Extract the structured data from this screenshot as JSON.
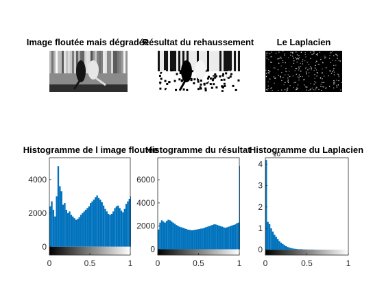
{
  "figure": {
    "panels": [
      {
        "id": "img1",
        "kind": "image",
        "title": "Image floutée mais dégradée",
        "style": "blurred"
      },
      {
        "id": "img2",
        "kind": "image",
        "title": "Résultat du rehaussement",
        "style": "enhanced"
      },
      {
        "id": "img3",
        "kind": "image",
        "title": "Le Laplacien",
        "style": "laplacian"
      }
    ]
  },
  "chart_data": [
    {
      "type": "bar",
      "title": "Histogramme de l image floutée",
      "xlim": [
        0,
        1
      ],
      "ylim": [
        -500,
        5300
      ],
      "xticks": [
        0,
        0.5,
        1
      ],
      "xtick_labels": [
        "0",
        "0.5",
        "1"
      ],
      "yticks": [
        0,
        2000,
        4000
      ],
      "ytick_labels": [
        "0",
        "2000",
        "4000"
      ],
      "colorbar": "grayscale",
      "color": "#0072BD",
      "x": [
        0.0,
        0.02,
        0.04,
        0.06,
        0.08,
        0.1,
        0.12,
        0.14,
        0.16,
        0.18,
        0.2,
        0.22,
        0.24,
        0.26,
        0.28,
        0.3,
        0.32,
        0.34,
        0.36,
        0.38,
        0.4,
        0.42,
        0.44,
        0.46,
        0.48,
        0.5,
        0.52,
        0.54,
        0.56,
        0.58,
        0.6,
        0.62,
        0.64,
        0.66,
        0.68,
        0.7,
        0.72,
        0.74,
        0.76,
        0.78,
        0.8,
        0.82,
        0.84,
        0.86,
        0.88,
        0.9,
        0.92,
        0.94,
        0.96,
        0.98,
        1.0
      ],
      "y": [
        2400,
        2700,
        2200,
        1800,
        3000,
        4800,
        3600,
        3300,
        2500,
        2600,
        2200,
        2000,
        2100,
        1900,
        1800,
        1700,
        1600,
        1650,
        1750,
        1900,
        2000,
        2100,
        2200,
        2300,
        2400,
        2600,
        2700,
        2800,
        2950,
        3050,
        2900,
        2800,
        2650,
        2450,
        2250,
        2100,
        1950,
        1900,
        1950,
        2100,
        2300,
        2400,
        2450,
        2300,
        2150,
        2050,
        2250,
        2550,
        2700,
        2850,
        3000
      ]
    },
    {
      "type": "bar",
      "title": "Histogramme du résultat",
      "xlim": [
        0,
        1
      ],
      "ylim": [
        -500,
        7900
      ],
      "xticks": [
        0,
        0.5,
        1
      ],
      "xtick_labels": [
        "0",
        "0.5",
        "1"
      ],
      "yticks": [
        0,
        2000,
        4000,
        6000
      ],
      "ytick_labels": [
        "0",
        "2000",
        "4000",
        "6000"
      ],
      "colorbar": "grayscale",
      "color": "#0072BD",
      "x": [
        0.0,
        0.02,
        0.04,
        0.06,
        0.08,
        0.1,
        0.12,
        0.14,
        0.16,
        0.18,
        0.2,
        0.22,
        0.24,
        0.26,
        0.28,
        0.3,
        0.32,
        0.34,
        0.36,
        0.38,
        0.4,
        0.42,
        0.44,
        0.46,
        0.48,
        0.5,
        0.52,
        0.54,
        0.56,
        0.58,
        0.6,
        0.62,
        0.64,
        0.66,
        0.68,
        0.7,
        0.72,
        0.74,
        0.76,
        0.78,
        0.8,
        0.82,
        0.84,
        0.86,
        0.88,
        0.9,
        0.92,
        0.94,
        0.96,
        0.98,
        1.0
      ],
      "y": [
        1700,
        2300,
        2500,
        2400,
        2300,
        2450,
        2550,
        2500,
        2400,
        2300,
        2200,
        2100,
        2000,
        1950,
        1900,
        1850,
        1800,
        1750,
        1700,
        1680,
        1650,
        1650,
        1680,
        1700,
        1720,
        1750,
        1780,
        1800,
        1850,
        1900,
        1950,
        2000,
        2050,
        2100,
        2150,
        2150,
        2100,
        2050,
        2000,
        1950,
        1900,
        1850,
        1900,
        1950,
        2000,
        2050,
        2100,
        2150,
        2250,
        2300,
        7200
      ]
    },
    {
      "type": "bar",
      "title": "Histogramme du Laplacien",
      "exponent_label": "10",
      "xlim": [
        0,
        1
      ],
      "ylim": [
        -0.25,
        4.3
      ],
      "xticks": [
        0,
        0.5,
        1
      ],
      "xtick_labels": [
        "0",
        "0.5",
        "1"
      ],
      "yticks": [
        0,
        1,
        2,
        3,
        4
      ],
      "ytick_labels": [
        "0",
        "1",
        "2",
        "3",
        "4"
      ],
      "colorbar": "grayscale",
      "color": "#0072BD",
      "x": [
        0.0,
        0.02,
        0.04,
        0.06,
        0.08,
        0.1,
        0.12,
        0.14,
        0.16,
        0.18,
        0.2,
        0.22,
        0.24,
        0.26,
        0.28,
        0.3,
        0.32,
        0.34,
        0.36,
        0.38,
        0.4,
        0.45,
        0.5,
        0.6,
        0.7,
        0.8,
        0.9,
        1.0
      ],
      "y": [
        4.2,
        1.3,
        1.2,
        1.0,
        0.85,
        0.7,
        0.6,
        0.5,
        0.4,
        0.33,
        0.27,
        0.22,
        0.17,
        0.13,
        0.1,
        0.08,
        0.06,
        0.05,
        0.04,
        0.03,
        0.025,
        0.015,
        0.01,
        0.005,
        0.003,
        0.002,
        0.001,
        0.001
      ]
    }
  ]
}
